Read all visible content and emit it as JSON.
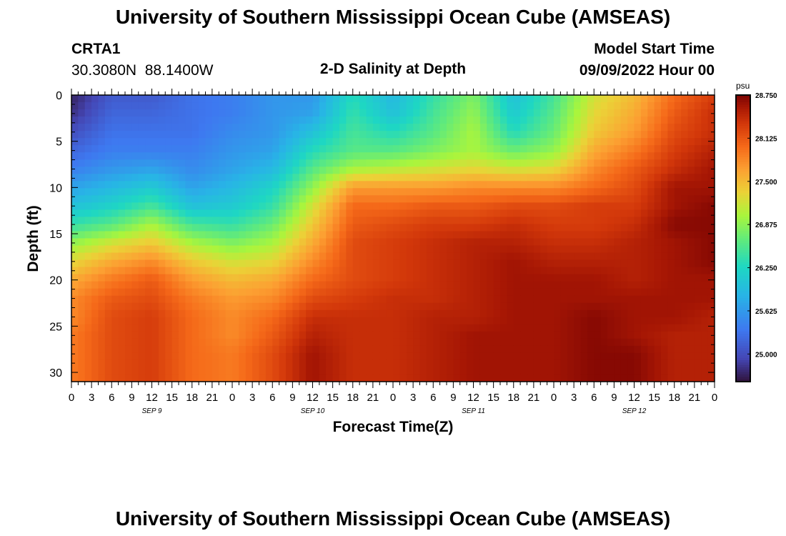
{
  "header": {
    "title": "University of Southern Mississippi Ocean Cube (AMSEAS)",
    "station_id": "CRTA1",
    "station_coords": "30.3080N  88.1400W",
    "plot_title": "2-D Salinity at Depth",
    "model_start_label": "Model Start Time",
    "model_start_value": "09/09/2022 Hour 00"
  },
  "footer": {
    "title_repeat": "University of Southern Mississippi Ocean Cube (AMSEAS)"
  },
  "colors": {
    "low": "#30123b",
    "high": "#7a0403"
  },
  "chart_data": {
    "type": "heatmap",
    "title": "2-D Salinity at Depth",
    "xlabel": "Forecast Time(Z)",
    "ylabel": "Depth (ft)",
    "x_tick_labels": [
      "0",
      "3",
      "6",
      "9",
      "12",
      "15",
      "18",
      "21",
      "0",
      "3",
      "6",
      "9",
      "12",
      "15",
      "18",
      "21",
      "0",
      "3",
      "6",
      "9",
      "12",
      "15",
      "18",
      "21",
      "0",
      "3",
      "6",
      "9",
      "12",
      "15",
      "18",
      "21",
      "0"
    ],
    "x_range_hours": [
      0,
      96
    ],
    "day_labels": [
      {
        "label": "SEP 9",
        "hour": 12
      },
      {
        "label": "SEP 10",
        "hour": 36
      },
      {
        "label": "SEP 11",
        "hour": 60
      },
      {
        "label": "SEP 12",
        "hour": 84
      }
    ],
    "y_ticks": [
      0,
      5,
      10,
      15,
      20,
      25,
      30
    ],
    "y_tick_labels": [
      "0",
      "5",
      "10",
      "15",
      "20",
      "25",
      "30"
    ],
    "ylim": [
      0,
      31
    ],
    "colorbar": {
      "units": "psu",
      "min": 24.6,
      "max": 28.75,
      "tick_values": [
        28.75,
        28.125,
        27.5,
        26.875,
        26.25,
        25.625,
        25.0
      ],
      "tick_labels": [
        "28.750",
        "28.125",
        "27.500",
        "26.875",
        "26.250",
        "25.625",
        "25.000"
      ]
    },
    "depth_levels_ft": [
      0,
      2,
      4,
      6,
      8,
      10,
      12,
      14,
      16,
      18,
      20,
      22,
      24,
      26,
      28,
      30
    ],
    "time_hours": [
      0,
      6,
      12,
      18,
      24,
      30,
      36,
      42,
      48,
      54,
      60,
      66,
      72,
      78,
      84,
      90,
      96
    ],
    "salinity_psu": [
      [
        24.7,
        25.1,
        25.1,
        25.3,
        25.4,
        25.6,
        25.6,
        26.3,
        25.9,
        26.4,
        26.8,
        26.0,
        26.5,
        27.2,
        27.5,
        28.0,
        28.3
      ],
      [
        24.8,
        25.2,
        25.2,
        25.3,
        25.4,
        25.6,
        25.7,
        26.4,
        26.0,
        26.5,
        26.9,
        26.1,
        26.6,
        27.3,
        27.6,
        28.1,
        28.4
      ],
      [
        25.0,
        25.3,
        25.3,
        25.3,
        25.5,
        25.6,
        26.0,
        26.5,
        26.3,
        26.6,
        27.0,
        26.3,
        26.7,
        27.4,
        27.7,
        28.2,
        28.4
      ],
      [
        25.2,
        25.4,
        25.4,
        25.4,
        25.6,
        25.7,
        26.3,
        26.6,
        26.6,
        26.8,
        27.0,
        26.7,
        26.9,
        27.6,
        27.9,
        28.3,
        28.5
      ],
      [
        25.4,
        25.6,
        25.7,
        25.5,
        25.7,
        25.9,
        26.6,
        27.0,
        27.1,
        27.2,
        27.3,
        27.2,
        27.3,
        27.8,
        28.1,
        28.4,
        28.6
      ],
      [
        25.7,
        25.9,
        26.1,
        25.7,
        25.9,
        26.2,
        26.9,
        27.7,
        27.7,
        27.7,
        27.8,
        27.8,
        27.8,
        28.0,
        28.2,
        28.6,
        28.6
      ],
      [
        26.0,
        26.2,
        26.5,
        26.0,
        26.1,
        26.4,
        27.2,
        28.0,
        28.0,
        28.1,
        28.1,
        28.2,
        28.2,
        28.3,
        28.3,
        28.6,
        28.7
      ],
      [
        26.4,
        26.6,
        27.0,
        26.5,
        26.4,
        26.7,
        27.4,
        28.1,
        28.2,
        28.3,
        28.3,
        28.4,
        28.3,
        28.3,
        28.4,
        28.7,
        28.7
      ],
      [
        26.9,
        27.2,
        27.4,
        27.0,
        26.8,
        27.0,
        27.6,
        28.2,
        28.3,
        28.4,
        28.5,
        28.5,
        28.4,
        28.4,
        28.5,
        28.6,
        28.7
      ],
      [
        27.3,
        27.6,
        27.8,
        27.4,
        27.2,
        27.3,
        27.8,
        28.2,
        28.3,
        28.4,
        28.5,
        28.6,
        28.5,
        28.5,
        28.5,
        28.6,
        28.7
      ],
      [
        27.6,
        27.9,
        28.1,
        27.7,
        27.5,
        27.6,
        28.0,
        28.2,
        28.3,
        28.4,
        28.5,
        28.6,
        28.6,
        28.6,
        28.5,
        28.6,
        28.6
      ],
      [
        27.8,
        28.1,
        28.2,
        27.9,
        27.7,
        27.8,
        28.2,
        28.3,
        28.4,
        28.4,
        28.5,
        28.6,
        28.6,
        28.6,
        28.6,
        28.6,
        28.6
      ],
      [
        27.8,
        28.2,
        28.3,
        28.0,
        27.8,
        28.0,
        28.4,
        28.4,
        28.4,
        28.5,
        28.5,
        28.6,
        28.6,
        28.7,
        28.6,
        28.6,
        28.5
      ],
      [
        27.9,
        28.2,
        28.3,
        28.0,
        27.8,
        28.1,
        28.5,
        28.4,
        28.4,
        28.5,
        28.6,
        28.6,
        28.6,
        28.7,
        28.6,
        28.5,
        28.5
      ],
      [
        27.9,
        28.2,
        28.3,
        28.0,
        27.9,
        28.2,
        28.6,
        28.4,
        28.4,
        28.5,
        28.6,
        28.6,
        28.6,
        28.7,
        28.7,
        28.5,
        28.5
      ],
      [
        27.9,
        28.2,
        28.3,
        28.0,
        27.9,
        28.2,
        28.6,
        28.4,
        28.4,
        28.5,
        28.6,
        28.6,
        28.6,
        28.7,
        28.7,
        28.5,
        28.5
      ]
    ]
  }
}
